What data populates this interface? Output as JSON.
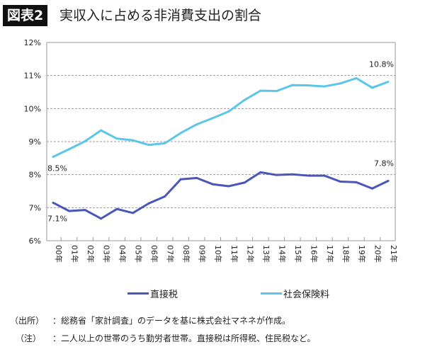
{
  "header": {
    "badge": "図表2",
    "title": "実収入に占める非消費支出の割合"
  },
  "chart_data": {
    "type": "line",
    "title": "実収入に占める非消費支出の割合",
    "categories": [
      "00年",
      "01年",
      "02年",
      "03年",
      "04年",
      "05年",
      "06年",
      "07年",
      "08年",
      "09年",
      "10年",
      "11年",
      "12年",
      "13年",
      "14年",
      "15年",
      "16年",
      "17年",
      "18年",
      "19年",
      "20年",
      "21年"
    ],
    "ylim": [
      6,
      12
    ],
    "yticks": [
      "6%",
      "7%",
      "8%",
      "9%",
      "10%",
      "11%",
      "12%"
    ],
    "grid": true,
    "legend_position": "bottom",
    "series": [
      {
        "name": "直接税",
        "color": "#4a56b8",
        "values": [
          7.15,
          6.9,
          6.93,
          6.67,
          6.96,
          6.84,
          7.13,
          7.34,
          7.86,
          7.9,
          7.71,
          7.65,
          7.76,
          8.07,
          7.99,
          8.01,
          7.97,
          7.97,
          7.79,
          7.77,
          7.58,
          7.81
        ],
        "labels": {
          "first": "7.1%",
          "last": "7.8%"
        }
      },
      {
        "name": "社会保険料",
        "color": "#5cc6e8",
        "values": [
          8.54,
          8.77,
          9.01,
          9.34,
          9.09,
          9.04,
          8.9,
          8.95,
          9.26,
          9.52,
          9.71,
          9.91,
          10.26,
          10.54,
          10.53,
          10.71,
          10.7,
          10.67,
          10.76,
          10.92,
          10.63,
          10.81
        ],
        "labels": {
          "first": "8.5%",
          "last": "10.8%"
        }
      }
    ]
  },
  "notes": [
    {
      "label": "（出所）",
      "text": "：総務省「家計調査」のデータを基に株式会社マネネが作成。"
    },
    {
      "label": "（注）",
      "text": "：二人以上の世帯のうち勤労者世帯。直接税は所得税、住民税など。"
    }
  ]
}
